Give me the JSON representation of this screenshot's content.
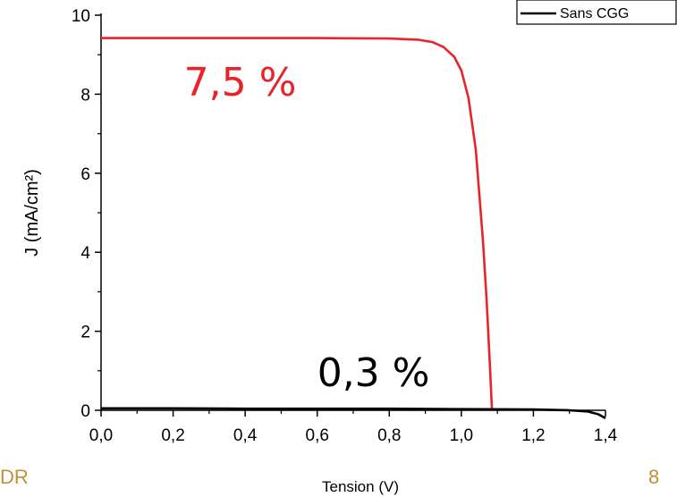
{
  "chart_data": {
    "type": "line",
    "xlabel": "Tension (V)",
    "ylabel": "J (mA/cm²)",
    "xlim": [
      0,
      1.4
    ],
    "ylim": [
      0,
      10
    ],
    "x_ticks": [
      "0,0",
      "0,2",
      "0,4",
      "0,6",
      "0,8",
      "1,0",
      "1,2",
      "1,4"
    ],
    "y_ticks": [
      "0",
      "2",
      "4",
      "6",
      "8",
      "10"
    ],
    "grid": false,
    "legend_position": "top-right",
    "series": [
      {
        "name": "",
        "color": "#e8232a",
        "x": [
          0,
          0.2,
          0.4,
          0.6,
          0.8,
          0.88,
          0.92,
          0.95,
          0.98,
          1.0,
          1.02,
          1.04,
          1.06,
          1.07,
          1.08,
          1.085
        ],
        "y": [
          9.42,
          9.42,
          9.42,
          9.42,
          9.41,
          9.38,
          9.32,
          9.2,
          8.95,
          8.6,
          7.9,
          6.6,
          4.3,
          2.8,
          1.0,
          0
        ]
      },
      {
        "name": "Sans CGG",
        "color": "#000000",
        "x": [
          0,
          0.2,
          0.4,
          0.6,
          0.8,
          1.0,
          1.2,
          1.3,
          1.35,
          1.38,
          1.4
        ],
        "y": [
          0.05,
          0.05,
          0.04,
          0.04,
          0.04,
          0.03,
          0.02,
          0.0,
          -0.03,
          -0.1,
          -0.2
        ]
      }
    ],
    "annotations": [
      {
        "text": "7,5  %",
        "color": "#e8232a",
        "x": 0.23,
        "y": 8.3
      },
      {
        "text": "0,3  %",
        "color": "#000000",
        "x": 0.6,
        "y": 0.95
      }
    ]
  },
  "footer": {
    "left": "DR",
    "right": "8"
  }
}
